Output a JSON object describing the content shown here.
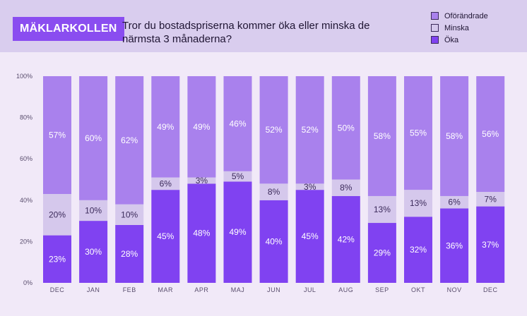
{
  "brand": "MÄKLARKOLLEN",
  "title": "Tror du bostadspriserna kommer öka eller minska de närmsta 3 månaderna?",
  "colors": {
    "oforandrade": "#a981ed",
    "minska": "#d5c8ec",
    "oka": "#8042f1",
    "header_bg": "#d9cdee",
    "page_bg": "#f1e9f8"
  },
  "chart_data": {
    "type": "bar",
    "stacked": true,
    "title": "Tror du bostadspriserna kommer öka eller minska de närmsta 3 månaderna?",
    "categories": [
      "DEC",
      "JAN",
      "FEB",
      "MAR",
      "APR",
      "MAJ",
      "JUN",
      "JUL",
      "AUG",
      "SEP",
      "OKT",
      "NOV",
      "DEC"
    ],
    "series": [
      {
        "name": "Öka",
        "values": [
          23,
          30,
          28,
          45,
          48,
          49,
          40,
          45,
          42,
          29,
          32,
          36,
          37
        ],
        "labels": [
          "23%",
          "30%",
          "28%",
          "45%",
          "48%",
          "49%",
          "40%",
          "45%",
          "42%",
          "29%",
          "32%",
          "36%",
          "37%"
        ]
      },
      {
        "name": "Minska",
        "values": [
          20,
          10,
          10,
          6,
          3,
          5,
          8,
          3,
          8,
          13,
          13,
          6,
          7
        ],
        "labels": [
          "20%",
          "10%",
          "10%",
          "6%",
          "3%",
          "5%",
          "8%",
          "3%",
          "8%",
          "13%",
          "13%",
          "6%",
          "7%"
        ]
      },
      {
        "name": "Oförändrade",
        "values": [
          57,
          60,
          62,
          49,
          49,
          46,
          52,
          52,
          50,
          58,
          55,
          58,
          56
        ],
        "labels": [
          "57%",
          "60%",
          "62%",
          "49%",
          "49%",
          "46%",
          "52%",
          "52%",
          "50%",
          "58%",
          "55%",
          "58%",
          "56%"
        ]
      }
    ],
    "legend": [
      "Oförändrade",
      "Minska",
      "Öka"
    ],
    "yticks": [
      "0%",
      "20%",
      "40%",
      "60%",
      "80%",
      "100%"
    ],
    "ylim": [
      0,
      100
    ],
    "xlabel": "",
    "ylabel": ""
  }
}
